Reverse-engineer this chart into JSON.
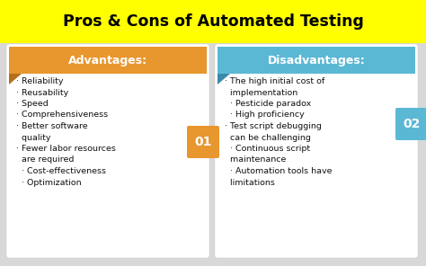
{
  "title": "Pros & Cons of Automated Testing",
  "title_bg": "#FFFF00",
  "title_color": "#000000",
  "background_color": "#D8D8D8",
  "left_header": "Advantages:",
  "left_header_bg": "#E8962E",
  "right_header": "Disadvantages:",
  "right_header_bg": "#5BB8D4",
  "left_number": "01",
  "right_number": "02",
  "number_bg_left": "#E8962E",
  "number_bg_right": "#5BB8D4",
  "left_items": "· Reliability\n· Reusability\n· Speed\n· Comprehensiveness\n· Better software\n  quality\n· Fewer labor resources\n  are required\n  · Cost-effectiveness\n  · Optimization",
  "right_items": "· The high initial cost of\n  implementation\n  · Pesticide paradox\n  · High proficiency\n· Test script debugging\n  can be challenging\n  · Continuous script\n  maintenance\n  · Automation tools have\n  limitations",
  "panel_bg": "#FFFFFF",
  "text_color": "#111111",
  "header_text_color": "#FFFFFF",
  "figw": 4.74,
  "figh": 2.96,
  "dpi": 100
}
